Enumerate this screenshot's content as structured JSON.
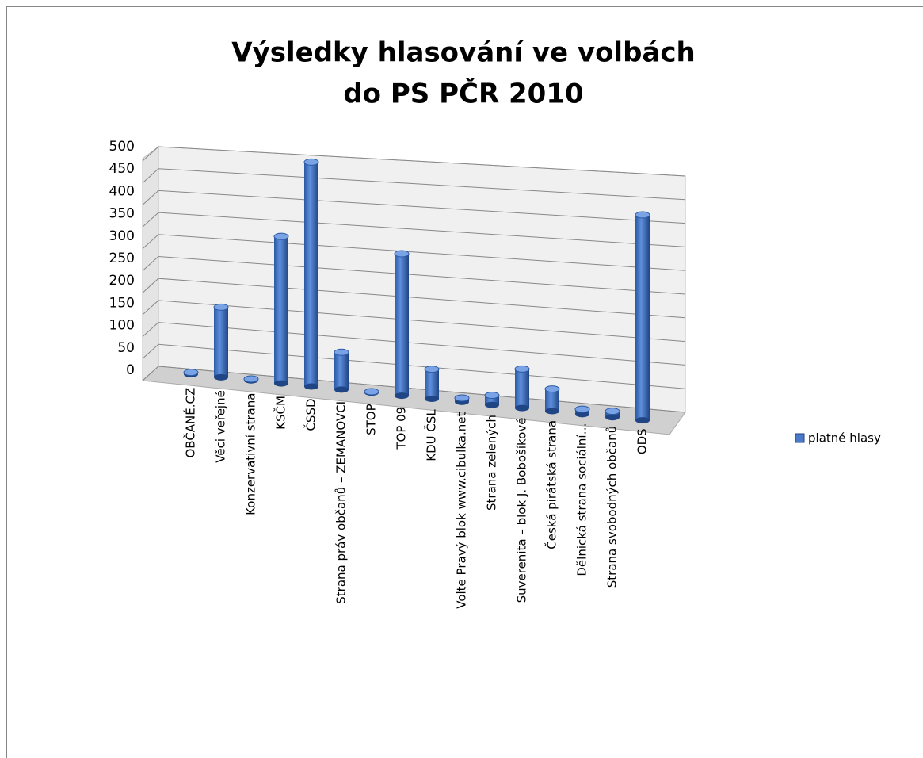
{
  "chart_data": {
    "type": "bar3d",
    "title": "Výsledky hlasování ve volbách",
    "subtitle": "do PS PČR 2010",
    "categories": [
      "OBČANÉ.CZ",
      "Věci veřejné",
      "Konzervativní strana",
      "KSČM",
      "ČSSD",
      "Strana práv občanů – ZEMANOVCI",
      "STOP",
      "TOP 09",
      "KDU ČSL",
      "Volte Pravý blok www.cibulka.net",
      "Strana zelených",
      "Suverenita – blok J. Bobošíkové",
      "Česká pirátská strana",
      "Dělnická strana sociální…",
      "Strana svobodných občanů",
      "ODS"
    ],
    "series": [
      {
        "name": "platné hlasy",
        "color": "#4a7ac8",
        "values": [
          4,
          155,
          3,
          320,
          485,
          80,
          2,
          300,
          62,
          8,
          20,
          80,
          45,
          10,
          12,
          410
        ]
      }
    ],
    "ylim": [
      0,
      500
    ],
    "yticks": [
      0,
      50,
      100,
      150,
      200,
      250,
      300,
      350,
      400,
      450,
      500
    ],
    "grid": true,
    "legend": "right"
  }
}
